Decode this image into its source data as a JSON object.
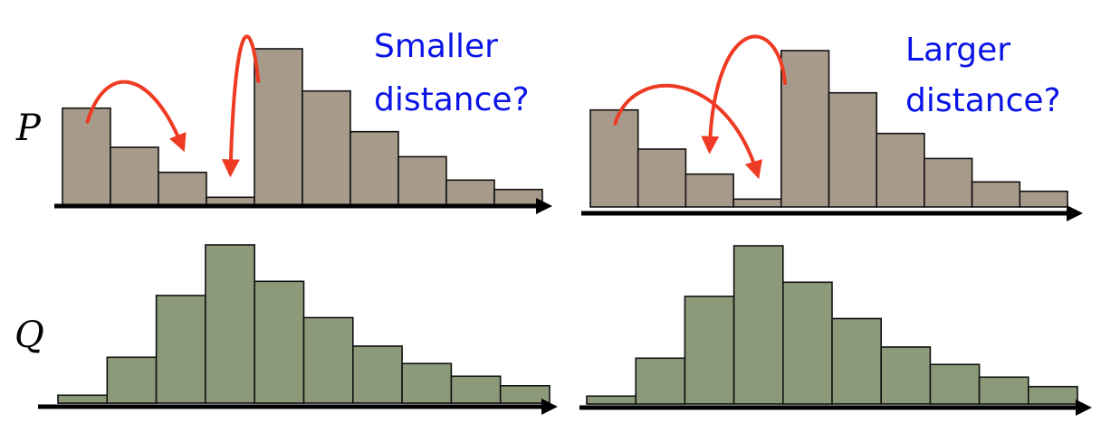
{
  "labels": {
    "p": "P",
    "q": "Q"
  },
  "captions": {
    "left": [
      "Smaller",
      "distance?"
    ],
    "right": [
      "Larger",
      "distance?"
    ]
  },
  "colors": {
    "p_bars": "#a89a8a",
    "q_bars": "#8c9a7a",
    "arrows": "#ee3b24",
    "caption_text": "#0a14e6"
  },
  "chart_data": [
    {
      "type": "bar",
      "distribution": "P",
      "panel": "left",
      "categories": [
        "1",
        "2",
        "3",
        "4",
        "5",
        "6",
        "7",
        "8",
        "9",
        "10"
      ],
      "values": [
        0.62,
        0.37,
        0.21,
        0.05,
        1.0,
        0.73,
        0.47,
        0.31,
        0.16,
        0.1
      ],
      "moves": [
        {
          "from_bin": 1,
          "to_bin": 3
        },
        {
          "from_bin": 5,
          "to_bin": 4
        }
      ]
    },
    {
      "type": "bar",
      "distribution": "P",
      "panel": "right",
      "categories": [
        "1",
        "2",
        "3",
        "4",
        "5",
        "6",
        "7",
        "8",
        "9",
        "10"
      ],
      "values": [
        0.62,
        0.37,
        0.21,
        0.05,
        1.0,
        0.73,
        0.47,
        0.31,
        0.16,
        0.1
      ],
      "moves": [
        {
          "from_bin": 1,
          "to_bin": 4
        },
        {
          "from_bin": 5,
          "to_bin": 3
        }
      ]
    },
    {
      "type": "bar",
      "distribution": "Q",
      "panel": "left",
      "categories": [
        "1",
        "2",
        "3",
        "4",
        "5",
        "6",
        "7",
        "8",
        "9",
        "10"
      ],
      "values": [
        0.05,
        0.29,
        0.68,
        1.0,
        0.77,
        0.54,
        0.36,
        0.25,
        0.17,
        0.11
      ]
    },
    {
      "type": "bar",
      "distribution": "Q",
      "panel": "right",
      "categories": [
        "1",
        "2",
        "3",
        "4",
        "5",
        "6",
        "7",
        "8",
        "9",
        "10"
      ],
      "values": [
        0.05,
        0.29,
        0.68,
        1.0,
        0.77,
        0.54,
        0.36,
        0.25,
        0.17,
        0.11
      ]
    }
  ]
}
